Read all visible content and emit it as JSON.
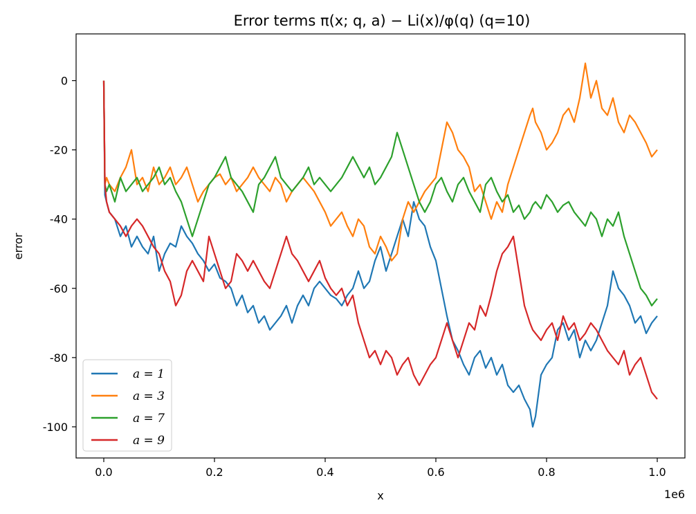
{
  "chart_data": {
    "type": "line",
    "title": "Error terms π(x; q, a) − Li(x)/φ(q) (q=10)",
    "xlabel": "x",
    "ylabel": "error",
    "x_offset_label": "1e6",
    "xlim": [
      -50000,
      1050000
    ],
    "ylim": [
      -109,
      13.5
    ],
    "x_ticks": [
      0,
      200000,
      400000,
      600000,
      800000,
      1000000
    ],
    "x_tick_labels": [
      "0.0",
      "0.2",
      "0.4",
      "0.6",
      "0.8",
      "1.0"
    ],
    "y_ticks": [
      0,
      -20,
      -40,
      -60,
      -80,
      -100
    ],
    "y_tick_labels": [
      "0",
      "-20",
      "-40",
      "-60",
      "-80",
      "-100"
    ],
    "grid": false,
    "legend_position": "lower-left",
    "x": [
      0,
      2000,
      5000,
      10000,
      20000,
      30000,
      40000,
      50000,
      60000,
      70000,
      80000,
      90000,
      100000,
      110000,
      120000,
      130000,
      140000,
      150000,
      160000,
      170000,
      180000,
      190000,
      200000,
      210000,
      220000,
      230000,
      240000,
      250000,
      260000,
      270000,
      280000,
      290000,
      300000,
      310000,
      320000,
      330000,
      340000,
      350000,
      360000,
      370000,
      380000,
      390000,
      400000,
      410000,
      420000,
      430000,
      440000,
      450000,
      460000,
      470000,
      480000,
      490000,
      500000,
      510000,
      520000,
      530000,
      540000,
      550000,
      560000,
      570000,
      580000,
      590000,
      600000,
      610000,
      620000,
      630000,
      640000,
      650000,
      660000,
      670000,
      680000,
      690000,
      700000,
      710000,
      720000,
      730000,
      740000,
      750000,
      760000,
      770000,
      775000,
      780000,
      790000,
      800000,
      810000,
      820000,
      830000,
      840000,
      850000,
      860000,
      870000,
      880000,
      890000,
      900000,
      910000,
      920000,
      930000,
      940000,
      950000,
      960000,
      970000,
      980000,
      990000,
      1000000
    ],
    "series": [
      {
        "name": "a = 1",
        "color": "#1f77b4",
        "values": [
          0,
          -33,
          -35,
          -38,
          -40,
          -45,
          -42,
          -48,
          -45,
          -48,
          -50,
          -45,
          -55,
          -50,
          -47,
          -48,
          -42,
          -45,
          -47,
          -50,
          -52,
          -55,
          -53,
          -57,
          -58,
          -60,
          -65,
          -62,
          -67,
          -65,
          -70,
          -68,
          -72,
          -70,
          -68,
          -65,
          -70,
          -65,
          -62,
          -65,
          -60,
          -58,
          -60,
          -62,
          -63,
          -65,
          -62,
          -60,
          -55,
          -60,
          -58,
          -52,
          -48,
          -55,
          -50,
          -45,
          -40,
          -45,
          -35,
          -40,
          -42,
          -48,
          -52,
          -60,
          -68,
          -75,
          -78,
          -82,
          -85,
          -80,
          -78,
          -83,
          -80,
          -85,
          -82,
          -88,
          -90,
          -88,
          -92,
          -95,
          -100,
          -97,
          -85,
          -82,
          -80,
          -72,
          -70,
          -75,
          -72,
          -80,
          -75,
          -78,
          -75,
          -70,
          -65,
          -55,
          -60,
          -62,
          -65,
          -70,
          -68,
          -73,
          -70,
          -68
        ]
      },
      {
        "name": "a = 3",
        "color": "#ff7f0e",
        "values": [
          0,
          -30,
          -28,
          -30,
          -32,
          -28,
          -25,
          -20,
          -30,
          -28,
          -32,
          -25,
          -30,
          -28,
          -25,
          -30,
          -28,
          -25,
          -30,
          -35,
          -32,
          -30,
          -28,
          -27,
          -30,
          -28,
          -32,
          -30,
          -28,
          -25,
          -28,
          -30,
          -32,
          -28,
          -30,
          -35,
          -32,
          -30,
          -28,
          -30,
          -32,
          -35,
          -38,
          -42,
          -40,
          -38,
          -42,
          -45,
          -40,
          -42,
          -48,
          -50,
          -45,
          -48,
          -52,
          -50,
          -40,
          -35,
          -38,
          -35,
          -32,
          -30,
          -28,
          -20,
          -12,
          -15,
          -20,
          -22,
          -25,
          -32,
          -30,
          -35,
          -40,
          -35,
          -38,
          -30,
          -25,
          -20,
          -15,
          -10,
          -8,
          -12,
          -15,
          -20,
          -18,
          -15,
          -10,
          -8,
          -12,
          -5,
          5,
          -5,
          0,
          -8,
          -10,
          -5,
          -12,
          -15,
          -10,
          -12,
          -15,
          -18,
          -22,
          -20
        ]
      },
      {
        "name": "a = 7",
        "color": "#2ca02c",
        "values": [
          0,
          -30,
          -32,
          -30,
          -35,
          -28,
          -32,
          -30,
          -28,
          -32,
          -30,
          -28,
          -25,
          -30,
          -28,
          -32,
          -35,
          -40,
          -45,
          -40,
          -35,
          -30,
          -28,
          -25,
          -22,
          -28,
          -30,
          -32,
          -35,
          -38,
          -30,
          -28,
          -25,
          -22,
          -28,
          -30,
          -32,
          -30,
          -28,
          -25,
          -30,
          -28,
          -30,
          -32,
          -30,
          -28,
          -25,
          -22,
          -25,
          -28,
          -25,
          -30,
          -28,
          -25,
          -22,
          -15,
          -20,
          -25,
          -30,
          -35,
          -38,
          -35,
          -30,
          -28,
          -32,
          -35,
          -30,
          -28,
          -32,
          -35,
          -38,
          -30,
          -28,
          -32,
          -35,
          -33,
          -38,
          -36,
          -40,
          -38,
          -36,
          -35,
          -37,
          -33,
          -35,
          -38,
          -36,
          -35,
          -38,
          -40,
          -42,
          -38,
          -40,
          -45,
          -40,
          -42,
          -38,
          -45,
          -50,
          -55,
          -60,
          -62,
          -65,
          -63
        ]
      },
      {
        "name": "a = 9",
        "color": "#d62728",
        "values": [
          0,
          -30,
          -35,
          -38,
          -40,
          -42,
          -45,
          -42,
          -40,
          -42,
          -45,
          -48,
          -50,
          -55,
          -58,
          -65,
          -62,
          -55,
          -52,
          -55,
          -58,
          -45,
          -50,
          -55,
          -60,
          -58,
          -50,
          -52,
          -55,
          -52,
          -55,
          -58,
          -60,
          -55,
          -50,
          -45,
          -50,
          -52,
          -55,
          -58,
          -55,
          -52,
          -57,
          -60,
          -62,
          -60,
          -65,
          -62,
          -70,
          -75,
          -80,
          -78,
          -82,
          -78,
          -80,
          -85,
          -82,
          -80,
          -85,
          -88,
          -85,
          -82,
          -80,
          -75,
          -70,
          -75,
          -80,
          -75,
          -70,
          -72,
          -65,
          -68,
          -62,
          -55,
          -50,
          -48,
          -45,
          -55,
          -65,
          -70,
          -72,
          -73,
          -75,
          -72,
          -70,
          -75,
          -68,
          -72,
          -70,
          -75,
          -73,
          -70,
          -72,
          -75,
          -78,
          -80,
          -82,
          -78,
          -85,
          -82,
          -80,
          -85,
          -90,
          -92
        ]
      }
    ]
  }
}
